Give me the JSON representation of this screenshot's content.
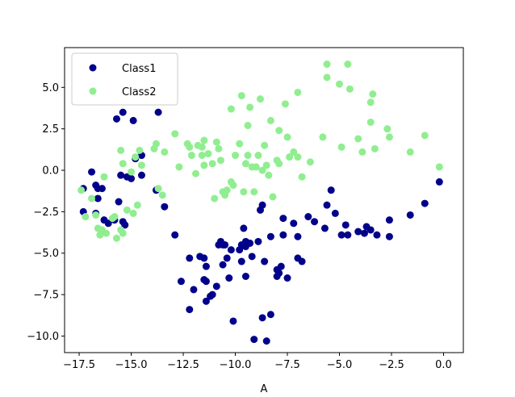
{
  "chart_data": {
    "type": "scatter",
    "title": "",
    "xlabel": "A",
    "ylabel": "",
    "xlim": [
      -18.2,
      0.95
    ],
    "ylim": [
      -11.0,
      7.4
    ],
    "xticks": [
      -17.5,
      -15.0,
      -12.5,
      -10.0,
      -7.5,
      -5.0,
      -2.5,
      0.0
    ],
    "xtick_labels": [
      "−17.5",
      "−15.0",
      "−12.5",
      "−10.0",
      "−7.5",
      "−5.0",
      "−2.5",
      "0.0"
    ],
    "yticks": [
      5.0,
      2.5,
      0.0,
      -2.5,
      -5.0,
      -7.5,
      -10.0
    ],
    "ytick_labels": [
      "5.0",
      "2.5",
      "0.0",
      "−2.5",
      "−5.0",
      "−7.5",
      "−10.0"
    ],
    "grid": false,
    "legend": "upper-left",
    "series": [
      {
        "name": "Class1",
        "color": "#00008b",
        "points": [
          [
            -17.3,
            -1.1
          ],
          [
            -17.3,
            -2.5
          ],
          [
            -16.9,
            -0.1
          ],
          [
            -16.7,
            -0.9
          ],
          [
            -16.6,
            -1.1
          ],
          [
            -16.6,
            -1.7
          ],
          [
            -16.7,
            -2.6
          ],
          [
            -16.4,
            -1.1
          ],
          [
            -16.3,
            -3.0
          ],
          [
            -16.1,
            -3.2
          ],
          [
            -15.8,
            -3.0
          ],
          [
            -15.7,
            3.1
          ],
          [
            -15.6,
            -1.9
          ],
          [
            -15.4,
            3.5
          ],
          [
            -15.5,
            -0.3
          ],
          [
            -15.4,
            -3.1
          ],
          [
            -15.3,
            -3.3
          ],
          [
            -15.2,
            -0.4
          ],
          [
            -15.0,
            -0.5
          ],
          [
            -14.9,
            3.0
          ],
          [
            -14.8,
            0.7
          ],
          [
            -14.5,
            0.9
          ],
          [
            -14.5,
            -0.3
          ],
          [
            -13.8,
            -1.2
          ],
          [
            -13.7,
            3.5
          ],
          [
            -13.4,
            -2.2
          ],
          [
            -12.9,
            -3.9
          ],
          [
            -12.6,
            -6.7
          ],
          [
            -12.2,
            -5.3
          ],
          [
            -12.2,
            -8.4
          ],
          [
            -12.0,
            -7.2
          ],
          [
            -11.7,
            -5.2
          ],
          [
            -11.5,
            -5.3
          ],
          [
            -11.5,
            -6.6
          ],
          [
            -11.4,
            -5.8
          ],
          [
            -11.4,
            -6.7
          ],
          [
            -11.4,
            -7.9
          ],
          [
            -11.2,
            -7.6
          ],
          [
            -11.1,
            -7.5
          ],
          [
            -10.9,
            -7.0
          ],
          [
            -10.8,
            -4.5
          ],
          [
            -10.7,
            -4.3
          ],
          [
            -10.6,
            -4.5
          ],
          [
            -10.6,
            -5.7
          ],
          [
            -10.5,
            -4.5
          ],
          [
            -10.4,
            -5.3
          ],
          [
            -10.3,
            -6.5
          ],
          [
            -10.2,
            -4.8
          ],
          [
            -10.1,
            -9.1
          ],
          [
            -9.8,
            -4.8
          ],
          [
            -9.7,
            -5.5
          ],
          [
            -9.7,
            -4.5
          ],
          [
            -9.5,
            -4.3
          ],
          [
            -9.5,
            -4.6
          ],
          [
            -9.5,
            -6.4
          ],
          [
            -9.6,
            -3.5
          ],
          [
            -9.3,
            -4.4
          ],
          [
            -9.2,
            -5.2
          ],
          [
            -9.1,
            -10.2
          ],
          [
            -8.9,
            -4.3
          ],
          [
            -8.8,
            -2.4
          ],
          [
            -8.7,
            -2.1
          ],
          [
            -8.7,
            -8.9
          ],
          [
            -8.6,
            -5.5
          ],
          [
            -8.5,
            -10.3
          ],
          [
            -8.3,
            -4.0
          ],
          [
            -8.3,
            -8.7
          ],
          [
            -8.0,
            -6.0
          ],
          [
            -8.0,
            -6.4
          ],
          [
            -7.9,
            -6.2
          ],
          [
            -7.8,
            -5.8
          ],
          [
            -7.7,
            -3.9
          ],
          [
            -7.7,
            -2.9
          ],
          [
            -7.5,
            -6.5
          ],
          [
            -7.2,
            -3.2
          ],
          [
            -7.0,
            -4.0
          ],
          [
            -7.0,
            -5.3
          ],
          [
            -6.8,
            -5.5
          ],
          [
            -6.5,
            -2.8
          ],
          [
            -6.2,
            -3.1
          ],
          [
            -5.7,
            -3.5
          ],
          [
            -5.6,
            -2.1
          ],
          [
            -5.4,
            -1.2
          ],
          [
            -5.2,
            -2.6
          ],
          [
            -4.9,
            -3.9
          ],
          [
            -4.7,
            -3.3
          ],
          [
            -4.6,
            -3.9
          ],
          [
            -4.1,
            -3.7
          ],
          [
            -3.8,
            -3.8
          ],
          [
            -3.7,
            -3.4
          ],
          [
            -3.5,
            -3.6
          ],
          [
            -3.2,
            -3.9
          ],
          [
            -2.6,
            -3.0
          ],
          [
            -2.6,
            -4.0
          ],
          [
            -1.6,
            -2.7
          ],
          [
            -0.9,
            -2.0
          ],
          [
            -0.2,
            -0.7
          ]
        ]
      },
      {
        "name": "Class2",
        "color": "#90ee90",
        "points": [
          [
            -17.4,
            -1.2
          ],
          [
            -17.2,
            -2.8
          ],
          [
            -16.9,
            -1.7
          ],
          [
            -16.7,
            -2.7
          ],
          [
            -16.6,
            -3.5
          ],
          [
            -16.5,
            -3.9
          ],
          [
            -16.4,
            -3.6
          ],
          [
            -16.3,
            -0.4
          ],
          [
            -16.2,
            -3.8
          ],
          [
            -15.9,
            -2.9
          ],
          [
            -15.8,
            -2.8
          ],
          [
            -15.7,
            -4.1
          ],
          [
            -15.5,
            -3.6
          ],
          [
            -15.5,
            1.2
          ],
          [
            -15.4,
            0.4
          ],
          [
            -15.4,
            -3.8
          ],
          [
            -15.2,
            -2.4
          ],
          [
            -15.0,
            -0.1
          ],
          [
            -14.9,
            -2.6
          ],
          [
            -14.8,
            0.8
          ],
          [
            -14.7,
            -2.1
          ],
          [
            -14.6,
            1.2
          ],
          [
            -14.5,
            0.3
          ],
          [
            -13.9,
            1.3
          ],
          [
            -13.8,
            1.6
          ],
          [
            -13.7,
            -1.1
          ],
          [
            -13.5,
            -1.5
          ],
          [
            -13.4,
            1.1
          ],
          [
            -12.9,
            2.2
          ],
          [
            -12.7,
            0.2
          ],
          [
            -12.3,
            1.6
          ],
          [
            -12.2,
            1.4
          ],
          [
            -12.1,
            0.9
          ],
          [
            -11.9,
            -0.2
          ],
          [
            -11.8,
            1.5
          ],
          [
            -11.6,
            0.9
          ],
          [
            -11.6,
            1.4
          ],
          [
            -11.5,
            1.8
          ],
          [
            -11.5,
            0.3
          ],
          [
            -11.3,
            1.0
          ],
          [
            -11.1,
            0.4
          ],
          [
            -11.0,
            -1.7
          ],
          [
            -10.9,
            1.7
          ],
          [
            -10.8,
            1.3
          ],
          [
            -10.7,
            0.6
          ],
          [
            -10.6,
            -1.3
          ],
          [
            -10.5,
            -1.5
          ],
          [
            -10.4,
            -1.2
          ],
          [
            -10.2,
            -0.7
          ],
          [
            -10.2,
            3.7
          ],
          [
            -10.1,
            -0.9
          ],
          [
            -10.0,
            0.9
          ],
          [
            -9.8,
            1.6
          ],
          [
            -9.7,
            4.5
          ],
          [
            -9.6,
            -1.3
          ],
          [
            -9.5,
            0.4
          ],
          [
            -9.4,
            0.9
          ],
          [
            -9.4,
            2.7
          ],
          [
            -9.3,
            3.8
          ],
          [
            -9.2,
            0.2
          ],
          [
            -9.1,
            -1.3
          ],
          [
            -9.0,
            0.2
          ],
          [
            -8.9,
            0.9
          ],
          [
            -8.8,
            4.3
          ],
          [
            -8.7,
            0.0
          ],
          [
            -8.6,
            1.5
          ],
          [
            -8.5,
            0.3
          ],
          [
            -8.4,
            -0.3
          ],
          [
            -8.3,
            3.0
          ],
          [
            -8.2,
            -1.6
          ],
          [
            -8.0,
            0.6
          ],
          [
            -7.9,
            0.4
          ],
          [
            -7.9,
            2.4
          ],
          [
            -7.6,
            4.0
          ],
          [
            -7.5,
            2.0
          ],
          [
            -7.4,
            0.8
          ],
          [
            -7.2,
            1.1
          ],
          [
            -7.0,
            0.8
          ],
          [
            -7.0,
            4.7
          ],
          [
            -6.8,
            -0.4
          ],
          [
            -6.4,
            0.5
          ],
          [
            -5.8,
            2.0
          ],
          [
            -5.6,
            6.4
          ],
          [
            -5.6,
            5.6
          ],
          [
            -5.0,
            5.2
          ],
          [
            -4.9,
            1.4
          ],
          [
            -4.6,
            6.4
          ],
          [
            -4.5,
            4.9
          ],
          [
            -4.1,
            1.9
          ],
          [
            -3.9,
            1.1
          ],
          [
            -3.5,
            2.9
          ],
          [
            -3.5,
            4.1
          ],
          [
            -3.4,
            4.6
          ],
          [
            -3.3,
            1.3
          ],
          [
            -2.7,
            2.5
          ],
          [
            -2.6,
            2.0
          ],
          [
            -1.6,
            1.1
          ],
          [
            -0.9,
            2.1
          ],
          [
            -0.2,
            0.2
          ]
        ]
      }
    ]
  }
}
